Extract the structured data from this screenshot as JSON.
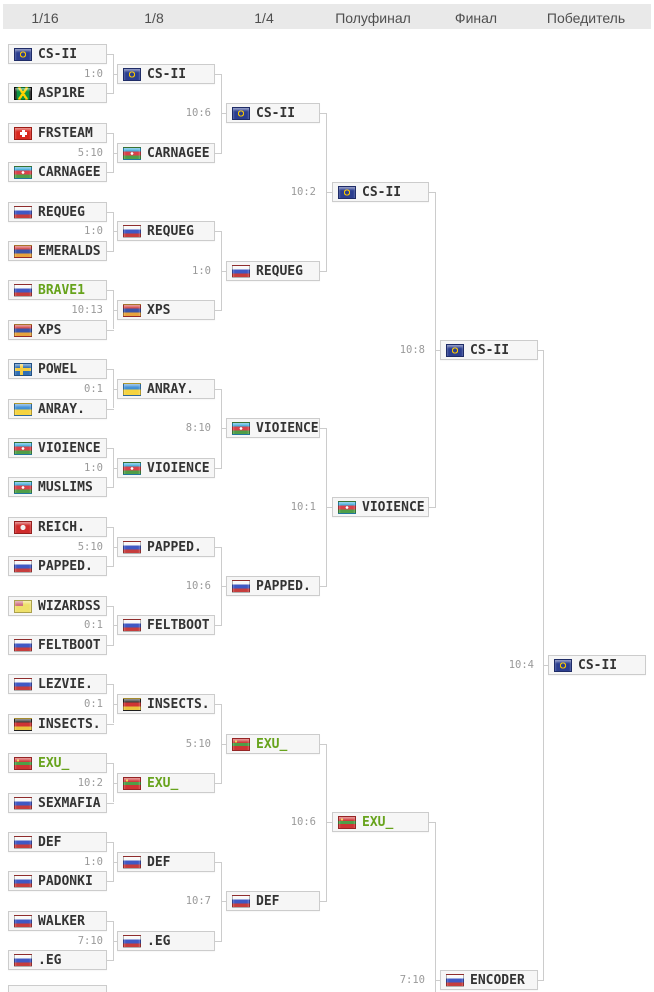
{
  "header": {
    "labels": [
      "1/16",
      "1/8",
      "1/4",
      "Полуфинал",
      "Финал",
      "Победитель"
    ]
  },
  "colors": {
    "header_bg": "#e9e9e9",
    "header_text": "#4f4f4f",
    "box_bg": "#f6f6f6",
    "box_border": "#cccccc",
    "connector": "#cccccc",
    "team_text": "#333333",
    "green_team": "#67a31c",
    "score_text": "#9a9a9a"
  },
  "rounds": [
    {
      "round": "1/16",
      "matches": [
        {
          "score": "1:0",
          "teams": [
            {
              "name": "CS-II",
              "flag": "eu"
            },
            {
              "name": "ASP1RE",
              "flag": "jamaica"
            }
          ]
        },
        {
          "score": "5:10",
          "teams": [
            {
              "name": "FRSTEAM",
              "flag": "switzerland"
            },
            {
              "name": "CARNAGEE",
              "flag": "azerbaijan"
            }
          ]
        },
        {
          "score": "1:0",
          "teams": [
            {
              "name": "REQUEG",
              "flag": "russia"
            },
            {
              "name": "EMERALDS",
              "flag": "armenia"
            }
          ]
        },
        {
          "score": "10:13",
          "teams": [
            {
              "name": "BRAVE1",
              "flag": "russia",
              "highlight": true
            },
            {
              "name": "XPS",
              "flag": "armenia"
            }
          ]
        },
        {
          "score": "0:1",
          "teams": [
            {
              "name": "POWEL",
              "flag": "sweden"
            },
            {
              "name": "ANRAY.",
              "flag": "ukraine"
            }
          ]
        },
        {
          "score": "1:0",
          "teams": [
            {
              "name": "VIOIENCE",
              "flag": "azerbaijan"
            },
            {
              "name": "MUSLIMS",
              "flag": "azerbaijan"
            }
          ]
        },
        {
          "score": "5:10",
          "teams": [
            {
              "name": "REICH.",
              "flag": "isle-of-man"
            },
            {
              "name": "PAPPED.",
              "flag": "russia"
            }
          ]
        },
        {
          "score": "0:1",
          "teams": [
            {
              "name": "WIZARDSS",
              "flag": "yellow-canton"
            },
            {
              "name": "FELTBOOT",
              "flag": "russia"
            }
          ]
        },
        {
          "score": "0:1",
          "teams": [
            {
              "name": "LEZVIE.",
              "flag": "russia"
            },
            {
              "name": "INSECTS.",
              "flag": "germany"
            }
          ]
        },
        {
          "score": "10:2",
          "teams": [
            {
              "name": "EXU_",
              "flag": "transnistria",
              "highlight": true
            },
            {
              "name": "SEXMAFIA",
              "flag": "russia"
            }
          ]
        },
        {
          "score": "1:0",
          "teams": [
            {
              "name": "DEF",
              "flag": "russia"
            },
            {
              "name": "PADONKI",
              "flag": "russia"
            }
          ]
        },
        {
          "score": "7:10",
          "teams": [
            {
              "name": "WALKER",
              "flag": "russia"
            },
            {
              "name": ".EG",
              "flag": "russia"
            }
          ]
        }
      ]
    },
    {
      "round": "1/8",
      "matches": [
        {
          "score": "10:6",
          "teams": [
            {
              "name": "CS-II",
              "flag": "eu"
            },
            {
              "name": "CARNAGEE",
              "flag": "azerbaijan"
            }
          ]
        },
        {
          "score": "1:0",
          "teams": [
            {
              "name": "REQUEG",
              "flag": "russia"
            },
            {
              "name": "XPS",
              "flag": "armenia"
            }
          ]
        },
        {
          "score": "8:10",
          "teams": [
            {
              "name": "ANRAY.",
              "flag": "ukraine"
            },
            {
              "name": "VIOIENCE",
              "flag": "azerbaijan"
            }
          ]
        },
        {
          "score": "10:6",
          "teams": [
            {
              "name": "PAPPED.",
              "flag": "russia"
            },
            {
              "name": "FELTBOOT",
              "flag": "russia"
            }
          ]
        },
        {
          "score": "5:10",
          "teams": [
            {
              "name": "INSECTS.",
              "flag": "germany"
            },
            {
              "name": "EXU_",
              "flag": "transnistria",
              "highlight": true
            }
          ]
        },
        {
          "score": "10:7",
          "teams": [
            {
              "name": "DEF",
              "flag": "russia"
            },
            {
              "name": ".EG",
              "flag": "russia"
            }
          ]
        }
      ]
    },
    {
      "round": "1/4",
      "matches": [
        {
          "score": "10:2",
          "teams": [
            {
              "name": "CS-II",
              "flag": "eu"
            },
            {
              "name": "REQUEG",
              "flag": "russia"
            }
          ]
        },
        {
          "score": "10:1",
          "teams": [
            {
              "name": "VIOIENCE",
              "flag": "azerbaijan"
            },
            {
              "name": "PAPPED.",
              "flag": "russia"
            }
          ]
        },
        {
          "score": "10:6",
          "teams": [
            {
              "name": "EXU_",
              "flag": "transnistria",
              "highlight": true
            },
            {
              "name": "DEF",
              "flag": "russia"
            }
          ]
        }
      ]
    },
    {
      "round": "Полуфинал",
      "matches": [
        {
          "score": "10:8",
          "teams": [
            {
              "name": "CS-II",
              "flag": "eu"
            },
            {
              "name": "VIOIENCE",
              "flag": "azerbaijan"
            }
          ]
        },
        {
          "score": "7:10",
          "teams": [
            {
              "name": "EXU_",
              "flag": "transnistria",
              "highlight": true
            },
            null
          ]
        }
      ]
    },
    {
      "round": "Финал",
      "matches": [
        {
          "score": "10:4",
          "teams": [
            {
              "name": "CS-II",
              "flag": "eu"
            },
            {
              "name": "ENCODER",
              "flag": "russia"
            }
          ]
        }
      ]
    },
    {
      "round": "Победитель",
      "matches": [
        {
          "teams": [
            {
              "name": "CS-II",
              "flag": "eu"
            }
          ]
        }
      ]
    }
  ]
}
